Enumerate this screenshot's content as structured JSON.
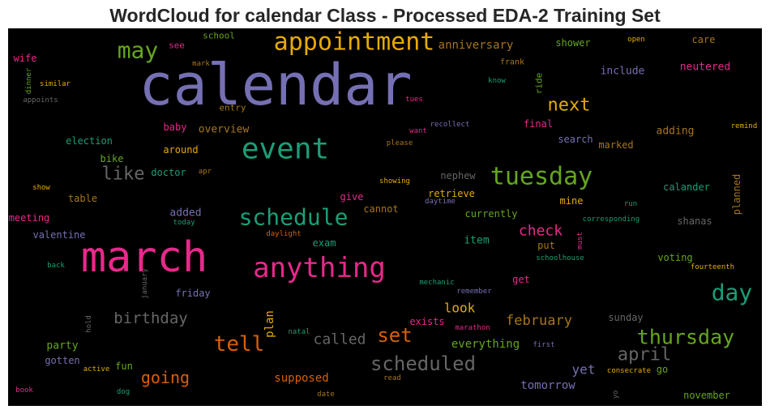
{
  "chart_data": {
    "type": "wordcloud",
    "title": "WordCloud for calendar Class - Processed EDA-2 Training Set",
    "background": "#000000",
    "words": [
      {
        "text": "calendar",
        "color": "#7570b3"
      },
      {
        "text": "appointment",
        "color": "#e6ab02"
      },
      {
        "text": "may",
        "color": "#66a61e"
      },
      {
        "text": "anniversary",
        "color": "#a6761d"
      },
      {
        "text": "school",
        "color": "#66a61e"
      },
      {
        "text": "see",
        "color": "#e7298a"
      },
      {
        "text": "shower",
        "color": "#66a61e"
      },
      {
        "text": "open",
        "color": "#e6ab02"
      },
      {
        "text": "care",
        "color": "#a6761d"
      },
      {
        "text": "wife",
        "color": "#e7298a"
      },
      {
        "text": "mark",
        "color": "#a6761d"
      },
      {
        "text": "frank",
        "color": "#a6761d"
      },
      {
        "text": "neutered",
        "color": "#e7298a"
      },
      {
        "text": "include",
        "color": "#7570b3"
      },
      {
        "text": "dinner",
        "color": "#66a61e"
      },
      {
        "text": "similar",
        "color": "#e6ab02"
      },
      {
        "text": "appoints",
        "color": "#666666"
      },
      {
        "text": "know",
        "color": "#1b9e77"
      },
      {
        "text": "ride",
        "color": "#66a61e"
      },
      {
        "text": "tues",
        "color": "#e7298a"
      },
      {
        "text": "entry",
        "color": "#a6761d"
      },
      {
        "text": "next",
        "color": "#e6ab02"
      },
      {
        "text": "event",
        "color": "#1b9e77"
      },
      {
        "text": "baby",
        "color": "#e7298a"
      },
      {
        "text": "overview",
        "color": "#a6761d"
      },
      {
        "text": "recollect",
        "color": "#7570b3"
      },
      {
        "text": "final",
        "color": "#e7298a"
      },
      {
        "text": "remind",
        "color": "#e6ab02"
      },
      {
        "text": "election",
        "color": "#1b9e77"
      },
      {
        "text": "want",
        "color": "#e7298a"
      },
      {
        "text": "adding",
        "color": "#a6761d"
      },
      {
        "text": "search",
        "color": "#7570b3"
      },
      {
        "text": "please",
        "color": "#a6761d"
      },
      {
        "text": "marked",
        "color": "#a6761d"
      },
      {
        "text": "around",
        "color": "#e6ab02"
      },
      {
        "text": "bike",
        "color": "#66a61e"
      },
      {
        "text": "like",
        "color": "#666666"
      },
      {
        "text": "doctor",
        "color": "#1b9e77"
      },
      {
        "text": "apr",
        "color": "#a6761d"
      },
      {
        "text": "tuesday",
        "color": "#66a61e"
      },
      {
        "text": "nephew",
        "color": "#666666"
      },
      {
        "text": "showing",
        "color": "#e6ab02"
      },
      {
        "text": "show",
        "color": "#e6ab02"
      },
      {
        "text": "calander",
        "color": "#1b9e77"
      },
      {
        "text": "planned",
        "color": "#a6761d"
      },
      {
        "text": "retrieve",
        "color": "#e6ab02"
      },
      {
        "text": "table",
        "color": "#a6761d"
      },
      {
        "text": "give",
        "color": "#e7298a"
      },
      {
        "text": "daytime",
        "color": "#7570b3"
      },
      {
        "text": "mine",
        "color": "#e6ab02"
      },
      {
        "text": "run",
        "color": "#1b9e77"
      },
      {
        "text": "schedule",
        "color": "#1b9e77"
      },
      {
        "text": "cannot",
        "color": "#a6761d"
      },
      {
        "text": "added",
        "color": "#7570b3"
      },
      {
        "text": "meeting",
        "color": "#e7298a"
      },
      {
        "text": "today",
        "color": "#1b9e77"
      },
      {
        "text": "currently",
        "color": "#66a61e"
      },
      {
        "text": "shanas",
        "color": "#666666"
      },
      {
        "text": "corresponding",
        "color": "#1b9e77"
      },
      {
        "text": "check",
        "color": "#e7298a"
      },
      {
        "text": "daylight",
        "color": "#d95f02"
      },
      {
        "text": "valentine",
        "color": "#7570b3"
      },
      {
        "text": "exam",
        "color": "#1b9e77"
      },
      {
        "text": "item",
        "color": "#1b9e77"
      },
      {
        "text": "put",
        "color": "#a6761d"
      },
      {
        "text": "must",
        "color": "#e7298a"
      },
      {
        "text": "march",
        "color": "#e7298a"
      },
      {
        "text": "anything",
        "color": "#e7298a"
      },
      {
        "text": "voting",
        "color": "#66a61e"
      },
      {
        "text": "schoolhouse",
        "color": "#1b9e77"
      },
      {
        "text": "back",
        "color": "#1b9e77"
      },
      {
        "text": "fourteenth",
        "color": "#e6ab02"
      },
      {
        "text": "january",
        "color": "#666666"
      },
      {
        "text": "get",
        "color": "#e7298a"
      },
      {
        "text": "mechanic",
        "color": "#1b9e77"
      },
      {
        "text": "day",
        "color": "#1b9e77"
      },
      {
        "text": "friday",
        "color": "#7570b3"
      },
      {
        "text": "remember",
        "color": "#7570b3"
      },
      {
        "text": "look",
        "color": "#e6ab02"
      },
      {
        "text": "birthday",
        "color": "#666666"
      },
      {
        "text": "sunday",
        "color": "#666666"
      },
      {
        "text": "february",
        "color": "#a6761d"
      },
      {
        "text": "plan",
        "color": "#e6ab02"
      },
      {
        "text": "exists",
        "color": "#e7298a"
      },
      {
        "text": "hold",
        "color": "#666666"
      },
      {
        "text": "marathon",
        "color": "#e7298a"
      },
      {
        "text": "natal",
        "color": "#1b9e77"
      },
      {
        "text": "set",
        "color": "#d95f02"
      },
      {
        "text": "called",
        "color": "#666666"
      },
      {
        "text": "thursday",
        "color": "#66a61e"
      },
      {
        "text": "party",
        "color": "#66a61e"
      },
      {
        "text": "tell",
        "color": "#d95f02"
      },
      {
        "text": "everything",
        "color": "#66a61e"
      },
      {
        "text": "first",
        "color": "#7570b3"
      },
      {
        "text": "april",
        "color": "#666666"
      },
      {
        "text": "gotten",
        "color": "#7570b3"
      },
      {
        "text": "scheduled",
        "color": "#666666"
      },
      {
        "text": "fun",
        "color": "#66a61e"
      },
      {
        "text": "yet",
        "color": "#7570b3"
      },
      {
        "text": "active",
        "color": "#e6ab02"
      },
      {
        "text": "consecrate",
        "color": "#e6ab02"
      },
      {
        "text": "go",
        "color": "#66a61e"
      },
      {
        "text": "going",
        "color": "#d95f02"
      },
      {
        "text": "supposed",
        "color": "#d95f02"
      },
      {
        "text": "read",
        "color": "#a6761d"
      },
      {
        "text": "tomorrow",
        "color": "#7570b3"
      },
      {
        "text": "book",
        "color": "#e7298a"
      },
      {
        "text": "dog",
        "color": "#1b9e77"
      },
      {
        "text": "date",
        "color": "#a6761d"
      },
      {
        "text": "yo",
        "color": "#666666"
      },
      {
        "text": "november",
        "color": "#66a61e"
      }
    ]
  }
}
